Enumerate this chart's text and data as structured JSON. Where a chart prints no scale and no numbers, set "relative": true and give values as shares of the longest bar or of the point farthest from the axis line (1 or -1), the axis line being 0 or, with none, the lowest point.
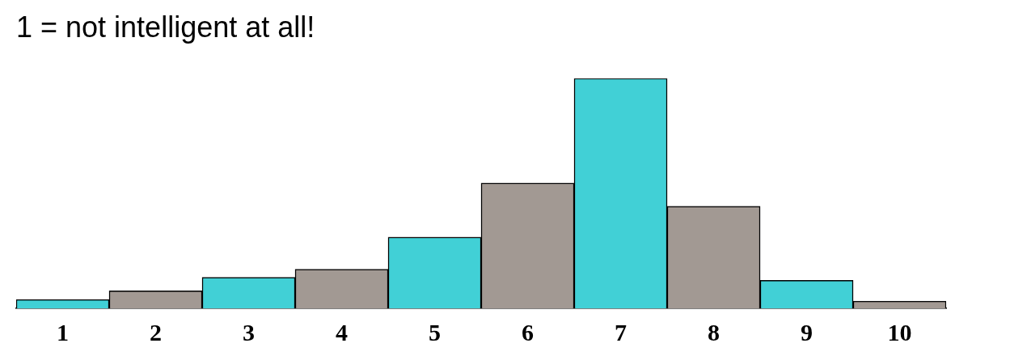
{
  "chart_data": {
    "type": "bar",
    "title": "1 = not intelligent at all!",
    "relative": true,
    "categories": [
      "1",
      "2",
      "3",
      "4",
      "5",
      "6",
      "7",
      "8",
      "9",
      "10"
    ],
    "values": [
      0.038,
      0.076,
      0.135,
      0.17,
      0.31,
      0.545,
      1,
      0.444,
      0.122,
      0.031
    ],
    "colors": [
      "#41d0d6",
      "#a29993",
      "#41d0d6",
      "#a29993",
      "#41d0d6",
      "#a29993",
      "#41d0d6",
      "#a29993",
      "#41d0d6",
      "#a29993"
    ],
    "grid": false,
    "legend": false
  }
}
